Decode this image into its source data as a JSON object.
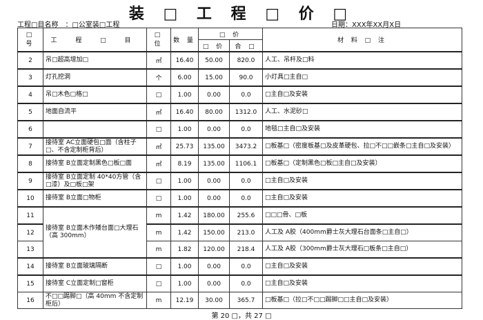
{
  "title": "装 □ 工 程 □ 价 □",
  "project_label": "工程□目名称　：□公室装□工程",
  "date_label": "日期：XXX年XX月X日",
  "headers": {
    "no": "□ 号",
    "item": "工 程 □ 目",
    "unit": "□ 位",
    "qty": "数 量",
    "price_group": "□ 价",
    "unit_price": "□ 价",
    "total": "合 □",
    "notes": "材 料 □ 注"
  },
  "rows": [
    {
      "no": "2",
      "item": "吊□超高增加□",
      "unit": "㎡",
      "qty": "16.40",
      "price": "50.00",
      "total": "820.0",
      "notes": "人工、吊杆及□料"
    },
    {
      "no": "3",
      "item": "灯孔挖洞",
      "unit": "个",
      "qty": "6.00",
      "price": "15.00",
      "total": "90.0",
      "notes": "小灯具□主自□"
    },
    {
      "no": "4",
      "item": "吊□木色□格□",
      "unit": "□",
      "qty": "1.00",
      "price": "0.00",
      "total": "0.0",
      "notes": "□主自□及安装"
    },
    {
      "no": "5",
      "item": "地面自流平",
      "unit": "㎡",
      "qty": "16.40",
      "price": "80.00",
      "total": "1312.0",
      "notes": "人工、水泥砂□"
    },
    {
      "no": "6",
      "item": "",
      "unit": "□",
      "qty": "1.00",
      "price": "0.00",
      "total": "0.0",
      "notes": "地毯□主自□及安装"
    },
    {
      "no": "7",
      "item": "接待室 AC立面硬包□面（含柱子□、不含定制柜背后）",
      "unit": "㎡",
      "qty": "25.73",
      "price": "135.00",
      "total": "3473.2",
      "notes": "□板基□（密度板基□及皮革硬包、拉□不□□嵌条□主自□及安装）"
    },
    {
      "no": "8",
      "item": "接待室 B立面定制黑色□板□面",
      "unit": "㎡",
      "qty": "8.19",
      "price": "135.00",
      "total": "1106.1",
      "notes": "□板基□（定制黑色□板□主自□及安装）"
    },
    {
      "no": "9",
      "item": "接待室 B立面定制 40*40方管（含□漆）及□板□架",
      "unit": "□",
      "qty": "1.00",
      "price": "0.00",
      "total": "0.0",
      "notes": "□主自□及安装"
    },
    {
      "no": "10",
      "item": "接待室 B立面□物柜",
      "unit": "□",
      "qty": "1.00",
      "price": "0.00",
      "total": "0.0",
      "notes": "□主自□及安装"
    },
    {
      "no": "11",
      "item": "接待室 B立面木作矮台面□大理石（高 300mm）",
      "unit": "m",
      "qty": "1.42",
      "price": "180.00",
      "total": "255.6",
      "notes": "□□□骨、□板"
    },
    {
      "no": "12",
      "unit": "m",
      "qty": "1.42",
      "price": "150.00",
      "total": "213.0",
      "notes": "人工及 A胶（400mm爵士灰大理石台面条□主自□）"
    },
    {
      "no": "13",
      "unit": "m",
      "qty": "1.82",
      "price": "120.00",
      "total": "218.4",
      "notes": "人工及 A胶（300mm爵士灰大理石□板条□主自□）"
    },
    {
      "no": "14",
      "item": "接待室 B立面玻璃隔断",
      "unit": "□",
      "qty": "1.00",
      "price": "0.00",
      "total": "0.0",
      "notes": "□主自□及安装"
    },
    {
      "no": "15",
      "item": "接待室 C立面定制□窗柜",
      "unit": "□",
      "qty": "1.00",
      "price": "0.00",
      "total": "0.0",
      "notes": "□主自□及安装"
    },
    {
      "no": "16",
      "item": "不□□踢脚□（高 40mm 不含定制柜后）",
      "unit": "m",
      "qty": "12.19",
      "price": "30.00",
      "total": "365.7",
      "notes": "□板基□（拉□不□□踢脚□□主自□及安装）"
    }
  ],
  "footer": "第 20 □，共 27 □"
}
